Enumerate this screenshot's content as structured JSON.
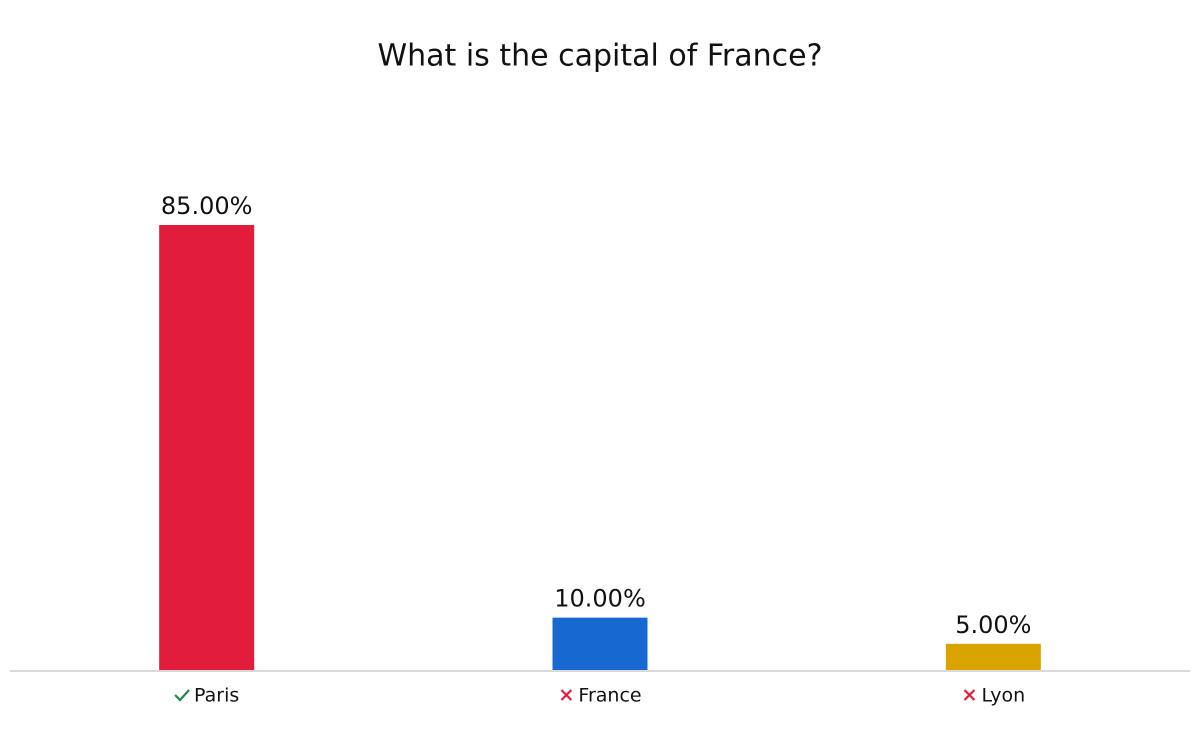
{
  "chart_data": {
    "type": "bar",
    "title": "What is the capital of France?",
    "categories": [
      "Paris",
      "France",
      "Lyon"
    ],
    "values": [
      85,
      10,
      5
    ],
    "value_labels": [
      "85.00%",
      "10.00%",
      "5.00%"
    ],
    "colors": [
      "#e21d3c",
      "#1769d1",
      "#d9a300"
    ],
    "correct": [
      true,
      false,
      false
    ]
  }
}
